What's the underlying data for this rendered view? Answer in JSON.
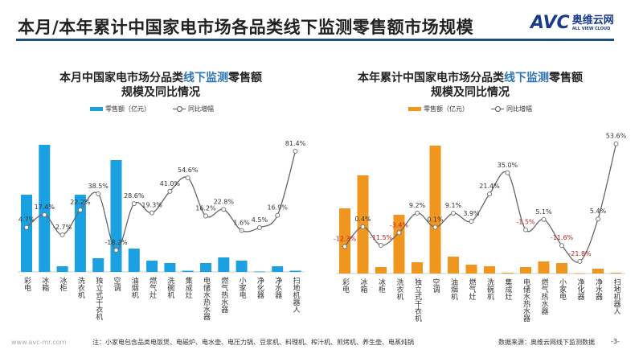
{
  "header": {
    "title": "本月/本年累计中国家电市场各品类线下监测零售额市场规模",
    "logo_mark": "AVC",
    "logo_cn": "奥维云网",
    "logo_en": "ALL VIEW CLOUD"
  },
  "chart_data": [
    {
      "type": "bar+line",
      "title_parts": [
        "本月中国家电市场分品类",
        "线下监测",
        "零售额"
      ],
      "title_line2": "规模及同比情况",
      "legend": [
        "零售额（亿元）",
        "同比增幅"
      ],
      "bar_color": "#1ba1e2",
      "categories": [
        "彩电",
        "冰箱",
        "冰柜",
        "洗衣机",
        "独立式干衣机",
        "空调",
        "油烟机",
        "燃气灶",
        "洗碗机",
        "集成灶",
        "电储水热水器",
        "燃气热水器",
        "小家电",
        "净化器",
        "净水器",
        "扫地机器人"
      ],
      "series": [
        {
          "name": "零售额（亿元）",
          "kind": "bar",
          "values": [
            96,
            158,
            7,
            96,
            17,
            139,
            29,
            14,
            11,
            1.5,
            11,
            18,
            14,
            0.5,
            7,
            1.5
          ]
        },
        {
          "name": "同比增幅",
          "kind": "line",
          "values": [
            4.7,
            17.4,
            -2.7,
            22.2,
            38.5,
            -18.2,
            28.6,
            19.3,
            41.0,
            54.6,
            16.2,
            22.8,
            1.6,
            4.5,
            16.9,
            81.4
          ],
          "labels": [
            "4.7%",
            "17.4%",
            "-2.7%",
            "22.2%",
            "38.5%",
            "-18.2%",
            "28.6%",
            "19.3%",
            "41.0%",
            "54.6%",
            "16.2%",
            "22.8%",
            "1.6%",
            "4.5%",
            "16.9%",
            "81.4%"
          ]
        }
      ]
    },
    {
      "type": "bar+line",
      "title_parts": [
        "本年累计中国家电市场分品类",
        "线下监测",
        "零售额"
      ],
      "title_line2": "规模及同比情况",
      "legend": [
        "零售额（亿元）",
        "同比增幅"
      ],
      "bar_color": "#f0961e",
      "categories": [
        "彩电",
        "冰箱",
        "冰柜",
        "洗衣机",
        "独立式干衣机",
        "空调",
        "油烟机",
        "燃气灶",
        "洗碗机",
        "集成灶",
        "电储水热水器",
        "燃气热水器",
        "小家电",
        "净化器",
        "净水器",
        "扫地机器人"
      ],
      "series": [
        {
          "name": "零售额（亿元）",
          "kind": "bar",
          "values": [
            81,
            122,
            8,
            73,
            14,
            159,
            21,
            11,
            9,
            1,
            8,
            15,
            13,
            0.3,
            6,
            1
          ]
        },
        {
          "name": "同比增幅",
          "kind": "line",
          "values": [
            -12.3,
            0.4,
            -11.5,
            -3.4,
            9.2,
            0.1,
            9.1,
            3.9,
            21.4,
            35.0,
            -1.5,
            5.1,
            -11.6,
            -21.8,
            5.4,
            53.6
          ],
          "labels": [
            "-12.3%",
            "0.4%",
            "-11.5%",
            "-3.4%",
            "9.2%",
            "0.1%",
            "9.1%",
            "3.9%",
            "21.4%",
            "35.0%",
            "-1.5%",
            "5.1%",
            "-11.6%",
            "-21.8%",
            "5.4%",
            "53.6%"
          ]
        }
      ]
    }
  ],
  "footer": {
    "site": "www.avc-mr.com",
    "note": "注：小家电包含品类电饭煲、电磁炉、电水壶、电压力锅、豆浆机、料理机、榨汁机、煎烤机、养生壶、电蒸炖锅",
    "source": "数据来源：奥维云网线下监测数据",
    "page": "-3-"
  }
}
